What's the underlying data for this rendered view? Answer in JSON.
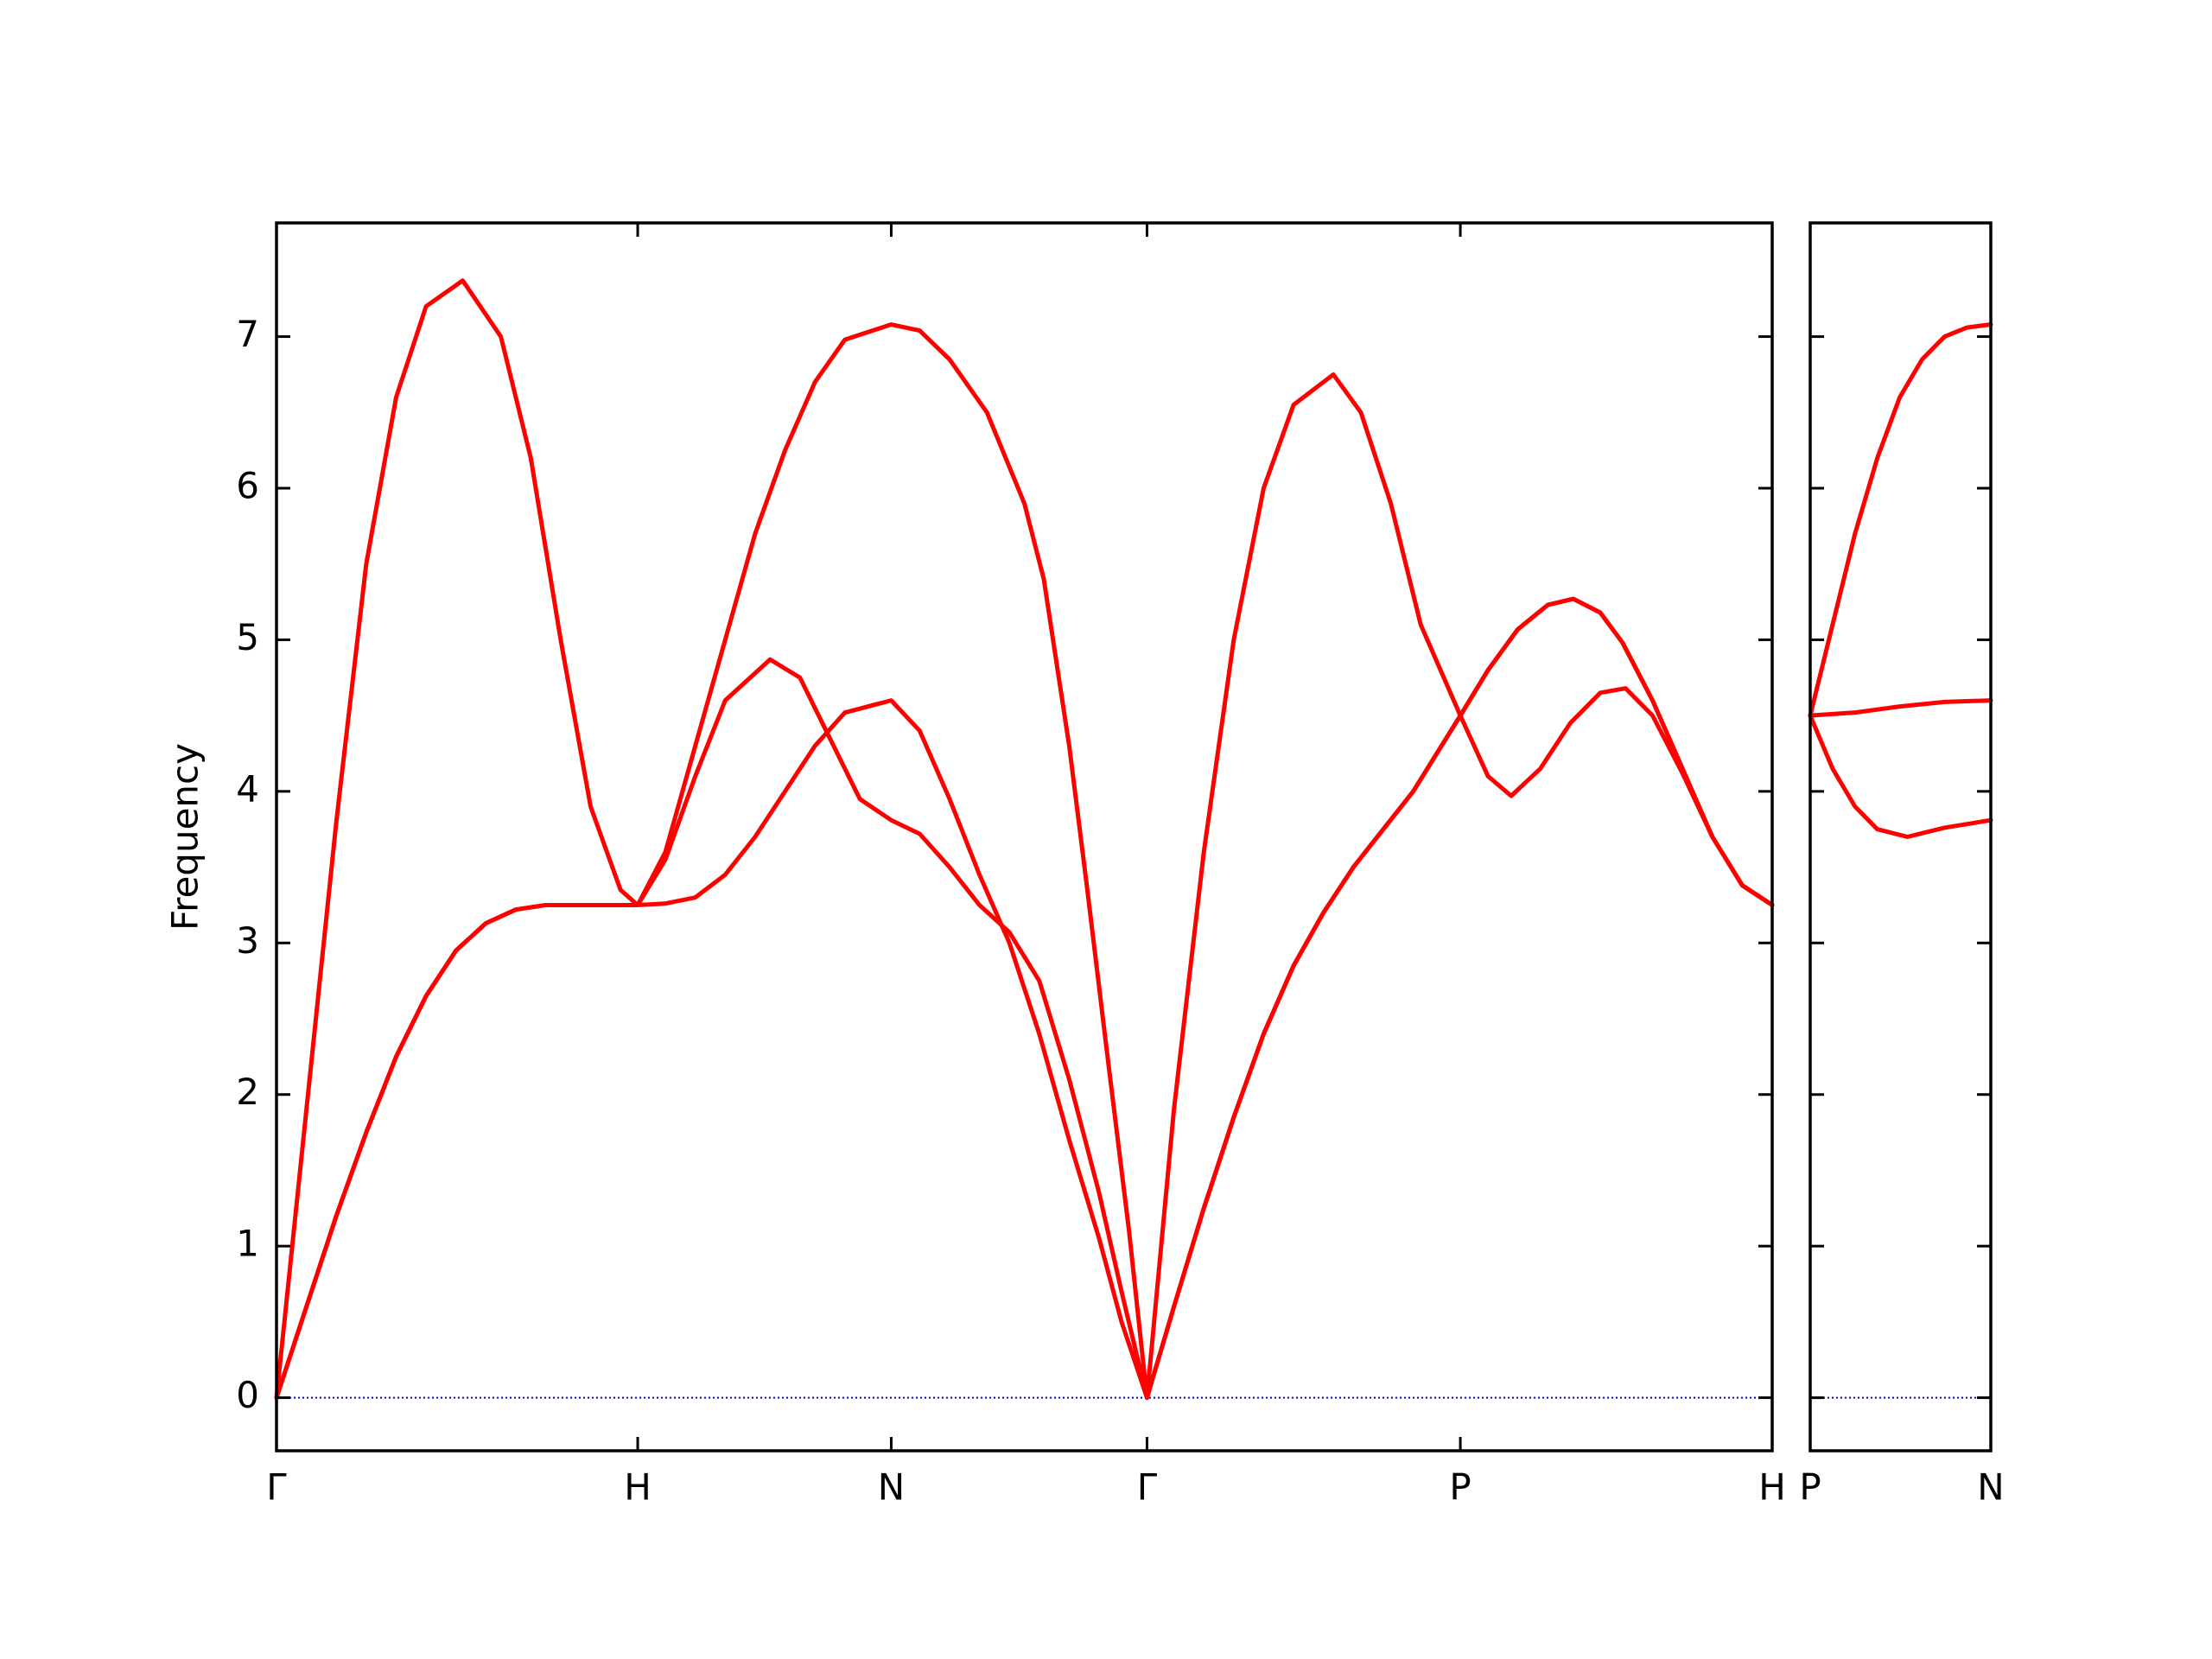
{
  "chart_data": [
    {
      "type": "line",
      "ylabel": "Frequency",
      "xlim": [
        0,
        1
      ],
      "ylim": [
        -0.35,
        7.75
      ],
      "xticks": [
        {
          "value": 0,
          "label": "Γ"
        },
        {
          "value": 0.2415,
          "label": "H"
        },
        {
          "value": 0.411,
          "label": "N"
        },
        {
          "value": 0.582,
          "label": "Γ"
        },
        {
          "value": 0.7915,
          "label": "P"
        },
        {
          "value": 1,
          "label": "H"
        }
      ],
      "yticks": [
        0,
        1,
        2,
        3,
        4,
        5,
        6,
        7
      ],
      "show_ytick_labels": true,
      "hlines": [
        0
      ],
      "hline_color": "#0000cd",
      "series": [
        {
          "color": "#ff0000",
          "x": [
            0,
            0.02,
            0.04,
            0.06,
            0.08,
            0.1,
            0.1245,
            0.15,
            0.17,
            0.19,
            0.21,
            0.23,
            0.2415,
            0.26,
            0.28,
            0.3,
            0.32,
            0.34,
            0.36,
            0.38,
            0.411,
            0.43,
            0.45,
            0.475,
            0.5,
            0.513,
            0.53,
            0.5415,
            0.555,
            0.57,
            0.582,
            0.6,
            0.62,
            0.64,
            0.66,
            0.68,
            0.7066,
            0.725,
            0.745,
            0.765,
            0.7915,
            0.81,
            0.8255,
            0.845,
            0.865,
            0.885,
            0.902,
            0.92,
            0.94,
            0.96,
            0.98,
            1.0
          ],
          "values": [
            0,
            1.9,
            3.8,
            5.5,
            6.6,
            7.2,
            7.37,
            7.0,
            6.2,
            5.0,
            3.9,
            3.35,
            3.25,
            3.6,
            4.3,
            5.0,
            5.7,
            6.25,
            6.7,
            6.98,
            7.08,
            7.04,
            6.85,
            6.5,
            5.9,
            5.4,
            4.3,
            3.4,
            2.3,
            1.1,
            0,
            1.9,
            3.6,
            5.0,
            6.0,
            6.55,
            6.75,
            6.5,
            5.9,
            5.1,
            4.5,
            4.1,
            3.97,
            4.15,
            4.45,
            4.65,
            4.68,
            4.5,
            4.12,
            3.7,
            3.38,
            3.25
          ]
        },
        {
          "color": "#ff0000",
          "x": [
            0,
            0.02,
            0.04,
            0.06,
            0.08,
            0.1,
            0.12,
            0.14,
            0.16,
            0.18,
            0.2,
            0.2415,
            0.26,
            0.28,
            0.3,
            0.33,
            0.35,
            0.37,
            0.39,
            0.411,
            0.43,
            0.45,
            0.47,
            0.49,
            0.51,
            0.53,
            0.55,
            0.565,
            0.582,
            0.6,
            0.62,
            0.64,
            0.66,
            0.68,
            0.7,
            0.72,
            0.74,
            0.76,
            0.7915,
            0.81,
            0.83,
            0.85,
            0.867,
            0.885,
            0.9,
            0.92,
            0.94,
            0.96,
            0.98,
            1.0
          ],
          "values": [
            0,
            0.6,
            1.2,
            1.75,
            2.25,
            2.65,
            2.95,
            3.13,
            3.22,
            3.25,
            3.25,
            3.25,
            3.55,
            4.1,
            4.6,
            4.87,
            4.75,
            4.35,
            3.95,
            3.81,
            3.72,
            3.5,
            3.25,
            3.07,
            2.75,
            2.1,
            1.35,
            0.7,
            0,
            0.6,
            1.25,
            1.85,
            2.4,
            2.85,
            3.2,
            3.5,
            3.75,
            4.0,
            4.5,
            4.8,
            5.07,
            5.23,
            5.27,
            5.18,
            4.98,
            4.6,
            4.15,
            3.7,
            3.38,
            3.25
          ]
        },
        {
          "color": "#ff0000",
          "x": [
            0,
            0.02,
            0.04,
            0.06,
            0.08,
            0.1,
            0.12,
            0.14,
            0.16,
            0.18,
            0.2,
            0.2415,
            0.26,
            0.28,
            0.3,
            0.32,
            0.34,
            0.36,
            0.38,
            0.411,
            0.43,
            0.45,
            0.47,
            0.49,
            0.51,
            0.53,
            0.55,
            0.565,
            0.582,
            0.6,
            0.62,
            0.64,
            0.66,
            0.68,
            0.7,
            0.72,
            0.74,
            0.76,
            0.7915,
            0.81,
            0.83,
            0.85,
            0.867,
            0.885,
            0.9,
            0.92,
            0.94,
            0.96,
            0.98,
            1.0
          ],
          "values": [
            0,
            0.6,
            1.2,
            1.75,
            2.25,
            2.65,
            2.95,
            3.13,
            3.22,
            3.25,
            3.25,
            3.25,
            3.26,
            3.3,
            3.45,
            3.7,
            4.0,
            4.3,
            4.52,
            4.6,
            4.4,
            3.95,
            3.45,
            3.0,
            2.4,
            1.7,
            1.05,
            0.5,
            0,
            0.6,
            1.25,
            1.85,
            2.4,
            2.85,
            3.2,
            3.5,
            3.75,
            4.0,
            4.5,
            4.8,
            5.07,
            5.23,
            5.27,
            5.18,
            4.98,
            4.6,
            4.15,
            3.7,
            3.38,
            3.25
          ]
        }
      ]
    },
    {
      "type": "line",
      "xlim": [
        0,
        0.121
      ],
      "ylim": [
        -0.35,
        7.75
      ],
      "xticks": [
        {
          "value": 0,
          "label": "P"
        },
        {
          "value": 0.121,
          "label": "N"
        }
      ],
      "yticks": [
        0,
        1,
        2,
        3,
        4,
        5,
        6,
        7
      ],
      "show_ytick_labels": false,
      "hlines": [
        0
      ],
      "hline_color": "#0000cd",
      "series": [
        {
          "color": "#ff0000",
          "x": [
            0,
            0.015,
            0.03,
            0.045,
            0.06,
            0.075,
            0.09,
            0.105,
            0.121
          ],
          "values": [
            4.5,
            5.1,
            5.7,
            6.2,
            6.6,
            6.85,
            7.0,
            7.06,
            7.08
          ]
        },
        {
          "color": "#ff0000",
          "x": [
            0,
            0.03,
            0.06,
            0.09,
            0.121
          ],
          "values": [
            4.5,
            4.52,
            4.56,
            4.59,
            4.6
          ]
        },
        {
          "color": "#ff0000",
          "x": [
            0,
            0.015,
            0.03,
            0.045,
            0.0651,
            0.09,
            0.121
          ],
          "values": [
            4.5,
            4.15,
            3.9,
            3.75,
            3.7,
            3.76,
            3.81
          ]
        }
      ]
    }
  ]
}
